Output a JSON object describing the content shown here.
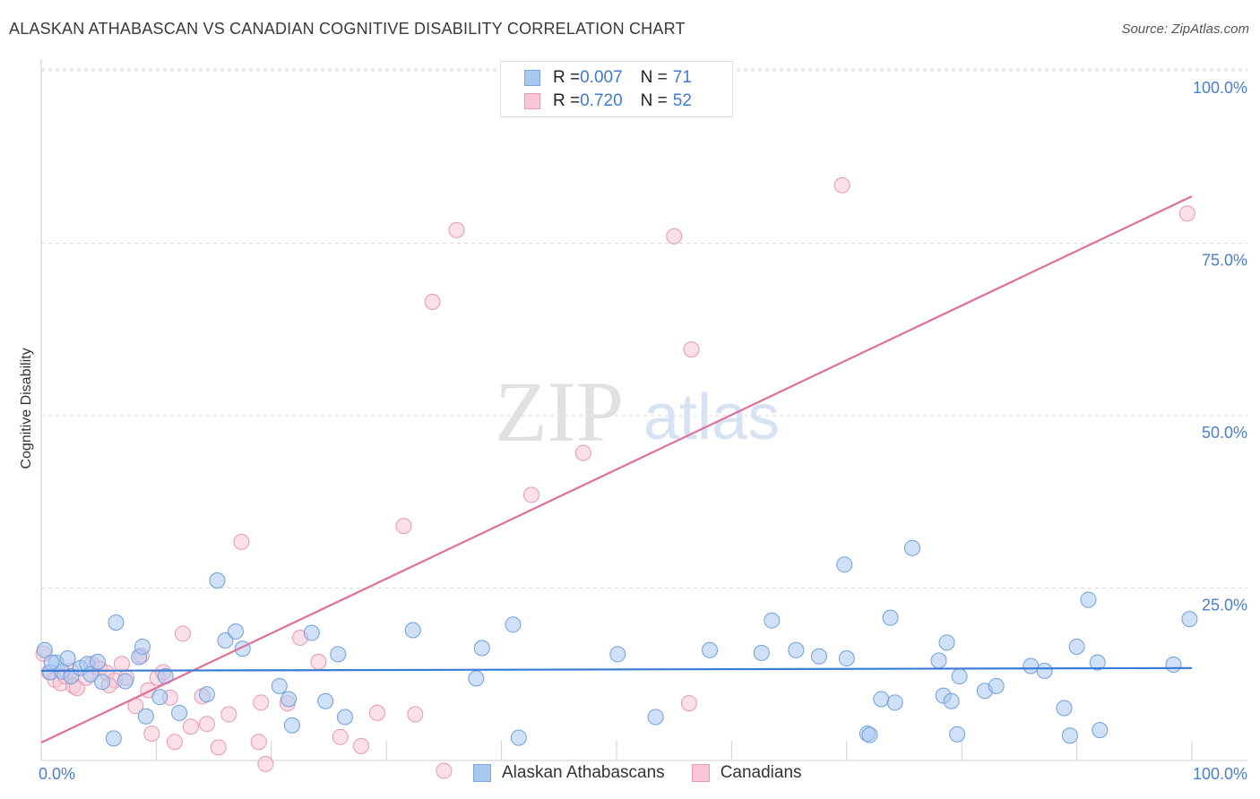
{
  "title": "ALASKAN ATHABASCAN VS CANADIAN COGNITIVE DISABILITY CORRELATION CHART",
  "source": "Source: ZipAtlas.com",
  "watermark": {
    "zip": "ZIP",
    "atlas": "atlas"
  },
  "legend_top": {
    "rows": [
      {
        "r_label": "R = ",
        "r_value": "0.007",
        "n_label": "N = ",
        "n_value": "71",
        "color": "#a9c8f0",
        "border": "#7aa7e0"
      },
      {
        "r_label": "R = ",
        "r_value": "0.720",
        "n_label": "N = ",
        "n_value": "52",
        "color": "#f8c6d6",
        "border": "#e99ab4"
      }
    ]
  },
  "colors": {
    "blue": "#a9c8f0",
    "blue_stroke": "#6f9fdb",
    "blue_line": "#3a7dd6",
    "pink": "#f8c6d6",
    "pink_stroke": "#e797b1",
    "pink_line": "#e0709a",
    "grid": "#d9d9d9"
  },
  "chart_data": {
    "type": "scatter",
    "xlabel": "",
    "ylabel": "Cognitive Disability",
    "xlim": [
      0,
      100
    ],
    "ylim": [
      0,
      100
    ],
    "x_tick_labels": [
      "0.0%",
      "100.0%"
    ],
    "y_tick_labels": [
      "25.0%",
      "50.0%",
      "75.0%",
      "100.0%"
    ],
    "y_ticks": [
      25,
      50,
      75,
      100
    ],
    "grid": true,
    "legend": "top-center",
    "series": [
      {
        "name": "Alaskan Athabascans",
        "trend": {
          "x": [
            0,
            100
          ],
          "y": [
            13.0,
            13.4
          ]
        },
        "points": [
          [
            0.3,
            16.0
          ],
          [
            0.8,
            12.8
          ],
          [
            1.3,
            14.2
          ],
          [
            1.8,
            12.9
          ],
          [
            2.3,
            14.8
          ],
          [
            2.6,
            12.2
          ],
          [
            3.4,
            13.4
          ],
          [
            4.0,
            14.0
          ],
          [
            4.3,
            12.5
          ],
          [
            4.9,
            14.3
          ],
          [
            5.3,
            11.4
          ],
          [
            6.3,
            3.2
          ],
          [
            6.5,
            20.0
          ],
          [
            7.3,
            11.5
          ],
          [
            8.5,
            15.0
          ],
          [
            8.8,
            16.5
          ],
          [
            9.1,
            6.4
          ],
          [
            10.3,
            9.2
          ],
          [
            10.8,
            12.2
          ],
          [
            12.0,
            6.9
          ],
          [
            14.4,
            9.6
          ],
          [
            15.3,
            26.1
          ],
          [
            16.0,
            17.4
          ],
          [
            16.9,
            18.7
          ],
          [
            17.5,
            16.2
          ],
          [
            20.7,
            10.8
          ],
          [
            21.5,
            8.9
          ],
          [
            21.8,
            5.1
          ],
          [
            23.5,
            18.5
          ],
          [
            24.7,
            8.6
          ],
          [
            25.8,
            15.4
          ],
          [
            26.4,
            6.3
          ],
          [
            32.3,
            18.9
          ],
          [
            37.8,
            11.9
          ],
          [
            38.3,
            16.3
          ],
          [
            41.0,
            19.7
          ],
          [
            41.5,
            3.3
          ],
          [
            50.1,
            15.4
          ],
          [
            53.4,
            6.3
          ],
          [
            58.1,
            16.0
          ],
          [
            62.6,
            15.6
          ],
          [
            63.5,
            20.3
          ],
          [
            65.6,
            16.0
          ],
          [
            67.6,
            15.1
          ],
          [
            69.8,
            28.4
          ],
          [
            70.0,
            14.8
          ],
          [
            71.8,
            3.9
          ],
          [
            72.0,
            3.7
          ],
          [
            73.0,
            8.9
          ],
          [
            73.8,
            20.7
          ],
          [
            74.2,
            8.4
          ],
          [
            75.7,
            30.8
          ],
          [
            78.0,
            14.5
          ],
          [
            78.4,
            9.4
          ],
          [
            78.7,
            17.1
          ],
          [
            79.1,
            8.6
          ],
          [
            79.6,
            3.8
          ],
          [
            79.8,
            12.2
          ],
          [
            82.0,
            10.1
          ],
          [
            83.0,
            10.8
          ],
          [
            86.0,
            13.7
          ],
          [
            87.2,
            13.0
          ],
          [
            88.9,
            7.6
          ],
          [
            89.4,
            3.6
          ],
          [
            90.0,
            16.5
          ],
          [
            91.0,
            23.3
          ],
          [
            91.8,
            14.2
          ],
          [
            92.0,
            4.4
          ],
          [
            98.4,
            13.9
          ],
          [
            99.8,
            20.5
          ],
          [
            0.9,
            14.2
          ]
        ]
      },
      {
        "name": "Canadians",
        "trend": {
          "x": [
            0,
            100
          ],
          "y": [
            2.6,
            81.8
          ]
        },
        "points": [
          [
            0.2,
            15.5
          ],
          [
            0.7,
            12.8
          ],
          [
            1.2,
            11.7
          ],
          [
            1.7,
            11.2
          ],
          [
            2.1,
            12.2
          ],
          [
            2.8,
            10.8
          ],
          [
            3.1,
            10.5
          ],
          [
            3.9,
            12.0
          ],
          [
            4.4,
            14.0
          ],
          [
            5.1,
            13.3
          ],
          [
            5.7,
            12.7
          ],
          [
            6.4,
            11.6
          ],
          [
            7.0,
            14.0
          ],
          [
            7.4,
            12.0
          ],
          [
            8.2,
            7.9
          ],
          [
            8.7,
            15.2
          ],
          [
            9.3,
            10.2
          ],
          [
            9.6,
            3.9
          ],
          [
            10.1,
            12.0
          ],
          [
            10.6,
            12.8
          ],
          [
            11.2,
            9.1
          ],
          [
            11.6,
            2.7
          ],
          [
            12.3,
            18.4
          ],
          [
            13.0,
            4.9
          ],
          [
            14.0,
            9.3
          ],
          [
            14.4,
            5.3
          ],
          [
            16.3,
            6.7
          ],
          [
            17.4,
            31.7
          ],
          [
            18.9,
            2.7
          ],
          [
            19.1,
            8.4
          ],
          [
            19.5,
            -0.5
          ],
          [
            21.4,
            8.3
          ],
          [
            22.5,
            17.8
          ],
          [
            24.1,
            14.3
          ],
          [
            26.0,
            3.4
          ],
          [
            27.8,
            2.1
          ],
          [
            29.2,
            6.9
          ],
          [
            31.5,
            34.0
          ],
          [
            32.5,
            6.7
          ],
          [
            34.0,
            66.5
          ],
          [
            35.0,
            -1.5
          ],
          [
            36.1,
            76.9
          ],
          [
            42.6,
            38.5
          ],
          [
            47.1,
            44.6
          ],
          [
            55.0,
            76.0
          ],
          [
            56.3,
            8.3
          ],
          [
            56.5,
            59.6
          ],
          [
            69.6,
            83.4
          ],
          [
            99.6,
            79.3
          ],
          [
            15.4,
            1.9
          ],
          [
            2.6,
            13.0
          ],
          [
            5.9,
            10.9
          ]
        ]
      }
    ]
  }
}
